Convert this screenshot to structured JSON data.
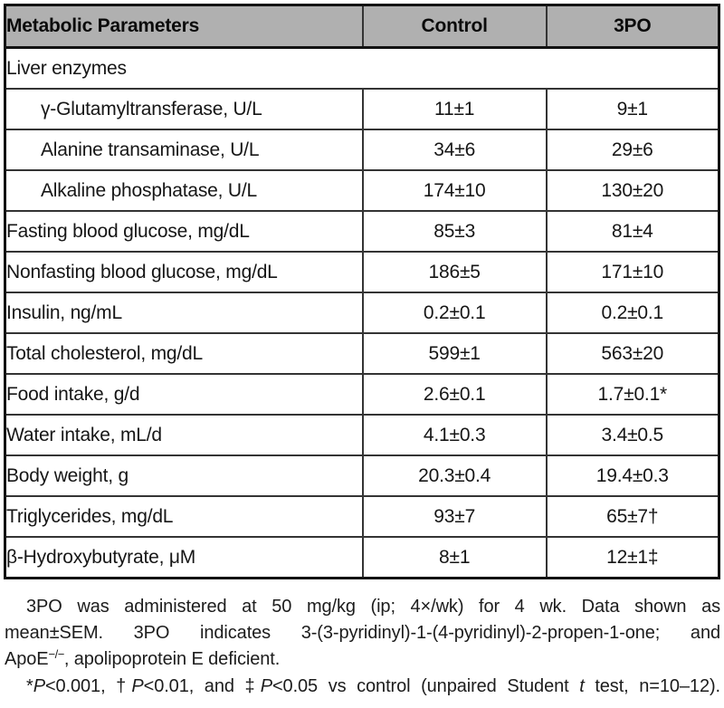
{
  "table": {
    "headers": [
      {
        "label": "Metabolic Parameters"
      },
      {
        "label": "Control"
      },
      {
        "label": "3PO"
      }
    ],
    "rows": [
      {
        "label": "Liver enzymes",
        "section": true
      },
      {
        "label": "γ-Glutamyltransferase, U/L",
        "indent": true,
        "control": "11±1",
        "tpo": "9±1"
      },
      {
        "label": "Alanine transaminase, U/L",
        "indent": true,
        "control": "34±6",
        "tpo": "29±6"
      },
      {
        "label": "Alkaline phosphatase, U/L",
        "indent": true,
        "control": "174±10",
        "tpo": "130±20"
      },
      {
        "label": "Fasting blood glucose, mg/dL",
        "control": "85±3",
        "tpo": "81±4"
      },
      {
        "label": "Nonfasting blood glucose, mg/dL",
        "control": "186±5",
        "tpo": "171±10"
      },
      {
        "label": "Insulin, ng/mL",
        "control": "0.2±0.1",
        "tpo": "0.2±0.1"
      },
      {
        "label": "Total cholesterol, mg/dL",
        "control": "599±1",
        "tpo": "563±20"
      },
      {
        "label": "Food intake, g/d",
        "control": "2.6±0.1",
        "tpo": "1.7±0.1*"
      },
      {
        "label": "Water intake, mL/d",
        "control": "4.1±0.3",
        "tpo": "3.4±0.5"
      },
      {
        "label": "Body weight, g",
        "control": "20.3±0.4",
        "tpo": "19.4±0.3"
      },
      {
        "label": "Triglycerides, mg/dL",
        "control": "93±7",
        "tpo": "65±7†"
      },
      {
        "label": "β-Hydroxybutyrate, μM",
        "control": "8±1",
        "tpo": "12±1‡"
      }
    ]
  },
  "footnote": {
    "lines": [
      {
        "indent": true,
        "justify": true,
        "segments": [
          {
            "t": "3PO was administered at 50 mg/kg (ip; 4×/wk) for 4 wk. Data shown as"
          }
        ]
      },
      {
        "justify": true,
        "segments": [
          {
            "t": "mean±SEM. 3PO indicates 3-(3-pyridinyl)-1-(4-pyridinyl)-2-propen-1-one; and"
          }
        ]
      },
      {
        "segments": [
          {
            "t": "ApoE"
          },
          {
            "t": "−/−",
            "s": "sup"
          },
          {
            "t": ", apolipoprotein E deficient."
          }
        ]
      },
      {
        "indent": true,
        "justify": true,
        "segments": [
          {
            "t": "*"
          },
          {
            "t": "P",
            "s": "i"
          },
          {
            "t": "<0.001, †"
          },
          {
            "t": "P",
            "s": "i"
          },
          {
            "t": "<0.01, and ‡"
          },
          {
            "t": "P",
            "s": "i"
          },
          {
            "t": "<0.05 vs control (unpaired Student "
          },
          {
            "t": "t",
            "s": "i"
          },
          {
            "t": " test, n=10–12)."
          }
        ]
      }
    ]
  },
  "colors": {
    "header_bg": "#b0b0b0",
    "outer_border": "#121212",
    "inner_border": "#343434",
    "text": "#161616"
  }
}
